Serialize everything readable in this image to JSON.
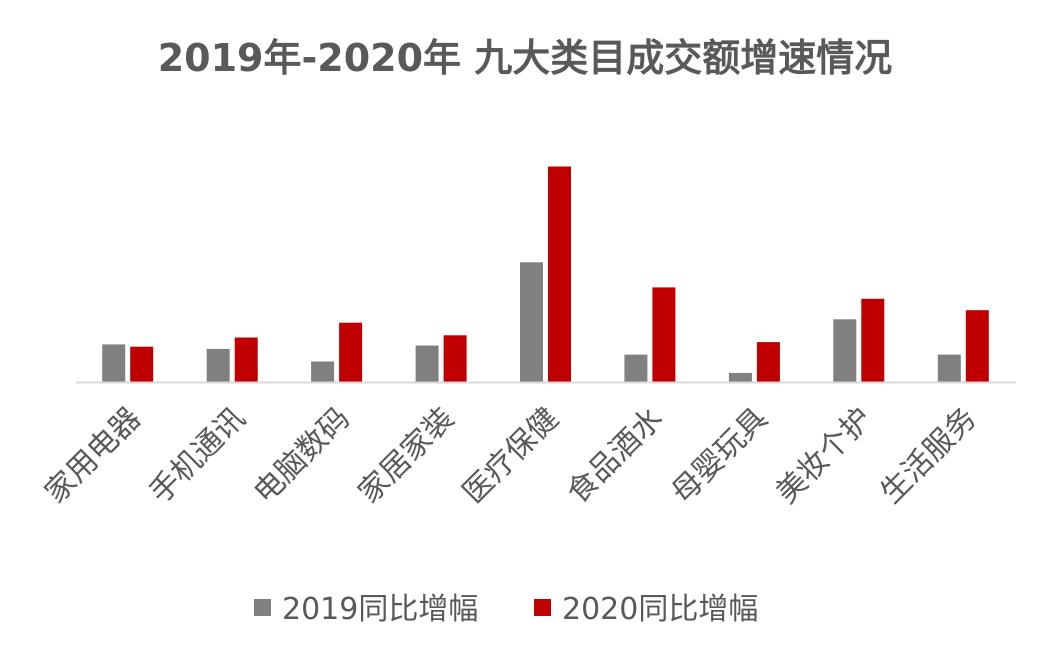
{
  "chart_data": {
    "type": "bar",
    "title": "2019年-2020年 九大类目成交额增速情况",
    "xlabel": "",
    "ylabel": "",
    "categories": [
      "家用电器",
      "手机通讯",
      "电脑数码",
      "家居家装",
      "医疗保健",
      "食品酒水",
      "母婴玩具",
      "美妆个护",
      "生活服务"
    ],
    "series": [
      {
        "name": "2019同比增幅",
        "color": "#808080",
        "values": [
          16.5,
          14.5,
          9.0,
          16.0,
          52.5,
          12.0,
          4.0,
          27.5,
          12.0
        ]
      },
      {
        "name": "2020同比增幅",
        "color": "#c00000",
        "values": [
          15.5,
          19.5,
          26.0,
          20.5,
          94.5,
          41.5,
          17.5,
          36.5,
          31.5
        ]
      }
    ],
    "ylim": [
      0,
      100
    ],
    "grid": false,
    "axis_color": "#d9d9d9",
    "legend_position": "bottom"
  }
}
